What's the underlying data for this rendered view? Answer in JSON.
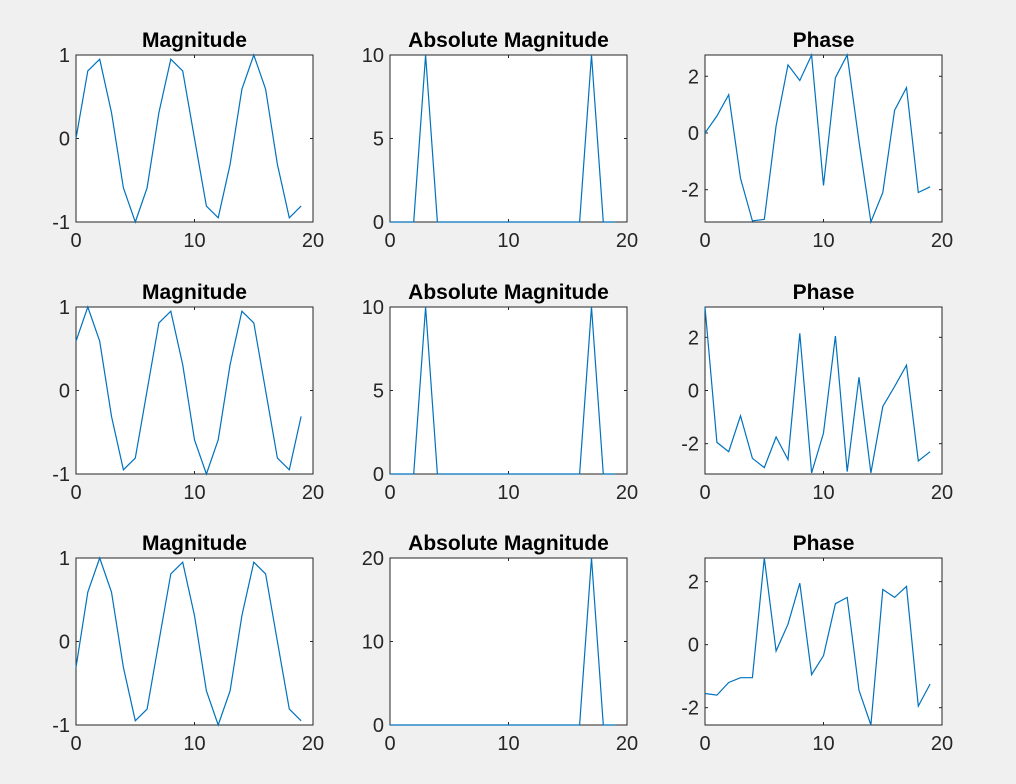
{
  "figure": {
    "background": "#f0f0f0",
    "line_color": "#0072bd",
    "axes_color": "#262626"
  },
  "chart_data": [
    {
      "type": "line",
      "title": "Magnitude",
      "xlim": [
        0,
        20
      ],
      "ylim": [
        -1,
        1
      ],
      "xticks": [
        "0",
        "10",
        "20"
      ],
      "yticks": [
        "-1",
        "0",
        "1"
      ],
      "x": [
        0,
        1,
        2,
        3,
        4,
        5,
        6,
        7,
        8,
        9,
        10,
        11,
        12,
        13,
        14,
        15,
        16,
        17,
        18,
        19
      ],
      "values": [
        0,
        0.81,
        0.95,
        0.31,
        -0.59,
        -1,
        -0.59,
        0.31,
        0.95,
        0.81,
        0,
        -0.81,
        -0.95,
        -0.31,
        0.59,
        1,
        0.59,
        -0.31,
        -0.95,
        -0.81
      ]
    },
    {
      "type": "line",
      "title": "Absolute Magnitude",
      "xlim": [
        0,
        20
      ],
      "ylim": [
        0,
        10
      ],
      "xticks": [
        "0",
        "10",
        "20"
      ],
      "yticks": [
        "0",
        "5",
        "10"
      ],
      "x": [
        0,
        1,
        2,
        3,
        4,
        5,
        6,
        7,
        8,
        9,
        10,
        11,
        12,
        13,
        14,
        15,
        16,
        17,
        18,
        19
      ],
      "values": [
        0,
        0,
        0,
        10,
        0,
        0,
        0,
        0,
        0,
        0,
        0,
        0,
        0,
        0,
        0,
        0,
        0,
        10,
        0,
        0
      ]
    },
    {
      "type": "line",
      "title": "Phase",
      "xlim": [
        0,
        20
      ],
      "ylim": [
        -3.14,
        2.75
      ],
      "xticks": [
        "0",
        "10",
        "20"
      ],
      "yticks": [
        "-2",
        "0",
        "2"
      ],
      "x": [
        0,
        1,
        2,
        3,
        4,
        5,
        6,
        7,
        8,
        9,
        10,
        11,
        12,
        13,
        14,
        15,
        16,
        17,
        18,
        19
      ],
      "values": [
        0,
        0.6,
        1.35,
        -1.6,
        -3.1,
        -3.05,
        0.25,
        2.4,
        1.85,
        2.75,
        -1.85,
        1.95,
        2.75,
        -0.3,
        -3.14,
        -2.1,
        0.8,
        1.6,
        -2.1,
        -1.9
      ]
    },
    {
      "type": "line",
      "title": "Magnitude",
      "xlim": [
        0,
        20
      ],
      "ylim": [
        -1,
        1
      ],
      "xticks": [
        "0",
        "10",
        "20"
      ],
      "yticks": [
        "-1",
        "0",
        "1"
      ],
      "x": [
        0,
        1,
        2,
        3,
        4,
        5,
        6,
        7,
        8,
        9,
        10,
        11,
        12,
        13,
        14,
        15,
        16,
        17,
        18,
        19
      ],
      "values": [
        0.59,
        1,
        0.59,
        -0.31,
        -0.95,
        -0.81,
        0,
        0.81,
        0.95,
        0.31,
        -0.59,
        -1,
        -0.59,
        0.31,
        0.95,
        0.81,
        0,
        -0.81,
        -0.95,
        -0.31
      ]
    },
    {
      "type": "line",
      "title": "Absolute Magnitude",
      "xlim": [
        0,
        20
      ],
      "ylim": [
        0,
        10
      ],
      "xticks": [
        "0",
        "10",
        "20"
      ],
      "yticks": [
        "0",
        "5",
        "10"
      ],
      "x": [
        0,
        1,
        2,
        3,
        4,
        5,
        6,
        7,
        8,
        9,
        10,
        11,
        12,
        13,
        14,
        15,
        16,
        17,
        18,
        19
      ],
      "values": [
        0,
        0,
        0,
        10,
        0,
        0,
        0,
        0,
        0,
        0,
        0,
        0,
        0,
        0,
        0,
        0,
        0,
        10,
        0,
        0
      ]
    },
    {
      "type": "line",
      "title": "Phase",
      "xlim": [
        0,
        20
      ],
      "ylim": [
        -3.14,
        3.14
      ],
      "xticks": [
        "0",
        "10",
        "20"
      ],
      "yticks": [
        "-2",
        "0",
        "2"
      ],
      "x": [
        0,
        1,
        2,
        3,
        4,
        5,
        6,
        7,
        8,
        9,
        10,
        11,
        12,
        13,
        14,
        15,
        16,
        17,
        18,
        19
      ],
      "values": [
        3.14,
        -1.95,
        -2.3,
        -0.95,
        -2.55,
        -2.9,
        -1.75,
        -2.6,
        2.15,
        -3.1,
        -1.6,
        2.05,
        -3.05,
        0.5,
        -3.1,
        -0.6,
        0.15,
        0.95,
        -2.65,
        -2.3
      ]
    },
    {
      "type": "line",
      "title": "Magnitude",
      "xlim": [
        0,
        20
      ],
      "ylim": [
        -1,
        1
      ],
      "xticks": [
        "0",
        "10",
        "20"
      ],
      "yticks": [
        "-1",
        "0",
        "1"
      ],
      "x": [
        0,
        1,
        2,
        3,
        4,
        5,
        6,
        7,
        8,
        9,
        10,
        11,
        12,
        13,
        14,
        15,
        16,
        17,
        18,
        19
      ],
      "values": [
        -0.31,
        0.59,
        1,
        0.59,
        -0.31,
        -0.95,
        -0.81,
        0,
        0.81,
        0.95,
        0.31,
        -0.59,
        -1,
        -0.59,
        0.31,
        0.95,
        0.81,
        0,
        -0.81,
        -0.95
      ]
    },
    {
      "type": "line",
      "title": "Absolute Magnitude",
      "xlim": [
        0,
        20
      ],
      "ylim": [
        0,
        20
      ],
      "xticks": [
        "0",
        "10",
        "20"
      ],
      "yticks": [
        "0",
        "10",
        "20"
      ],
      "x": [
        0,
        1,
        2,
        3,
        4,
        5,
        6,
        7,
        8,
        9,
        10,
        11,
        12,
        13,
        14,
        15,
        16,
        17,
        18,
        19
      ],
      "values": [
        0,
        0,
        0,
        0,
        0,
        0,
        0,
        0,
        0,
        0,
        0,
        0,
        0,
        0,
        0,
        0,
        0,
        20,
        0,
        0
      ]
    },
    {
      "type": "line",
      "title": "Phase",
      "xlim": [
        0,
        20
      ],
      "ylim": [
        -2.55,
        2.75
      ],
      "xticks": [
        "0",
        "10",
        "20"
      ],
      "yticks": [
        "-2",
        "0",
        "2"
      ],
      "x": [
        0,
        1,
        2,
        3,
        4,
        5,
        6,
        7,
        8,
        9,
        10,
        11,
        12,
        13,
        14,
        15,
        16,
        17,
        18,
        19
      ],
      "values": [
        -1.55,
        -1.6,
        -1.2,
        -1.05,
        -1.05,
        2.75,
        -0.2,
        0.65,
        1.95,
        -0.95,
        -0.35,
        1.3,
        1.5,
        -1.45,
        -2.55,
        1.75,
        1.5,
        1.85,
        -1.95,
        -1.25
      ]
    }
  ]
}
